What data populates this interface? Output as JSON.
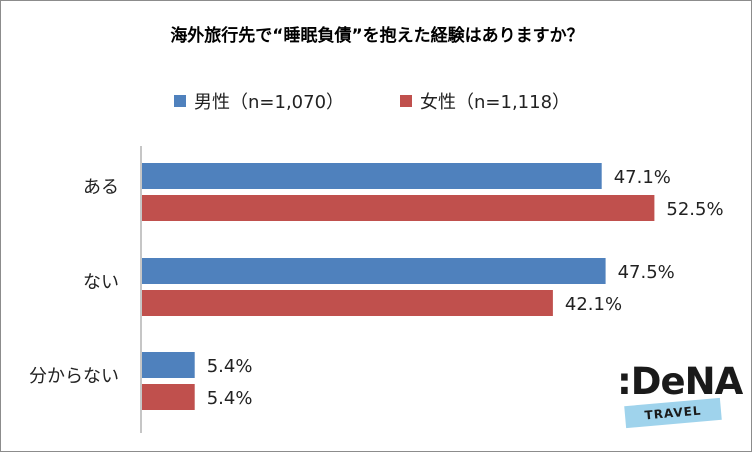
{
  "chart_data": {
    "type": "bar",
    "orientation": "horizontal",
    "title": "海外旅行先で“睡眠負債”を抱えた経験はありますか？",
    "categories": [
      "ある",
      "ない",
      "分からない"
    ],
    "series": [
      {
        "name": "男性（n=1,070）",
        "color": "#4f81bd",
        "values": [
          47.1,
          47.5,
          5.4
        ],
        "labels": [
          "47.1%",
          "47.5%",
          "5.4%"
        ]
      },
      {
        "name": "女性（n=1,118）",
        "color": "#c0504d",
        "values": [
          52.5,
          42.1,
          5.4
        ],
        "labels": [
          "52.5%",
          "42.1%",
          "5.4%"
        ]
      }
    ],
    "xlim": [
      0,
      60
    ],
    "legend": "top-center",
    "grid": false
  },
  "logo": {
    "word": ":DeNA",
    "sub": "TRAVEL",
    "band_color": "#9fd3ec"
  }
}
